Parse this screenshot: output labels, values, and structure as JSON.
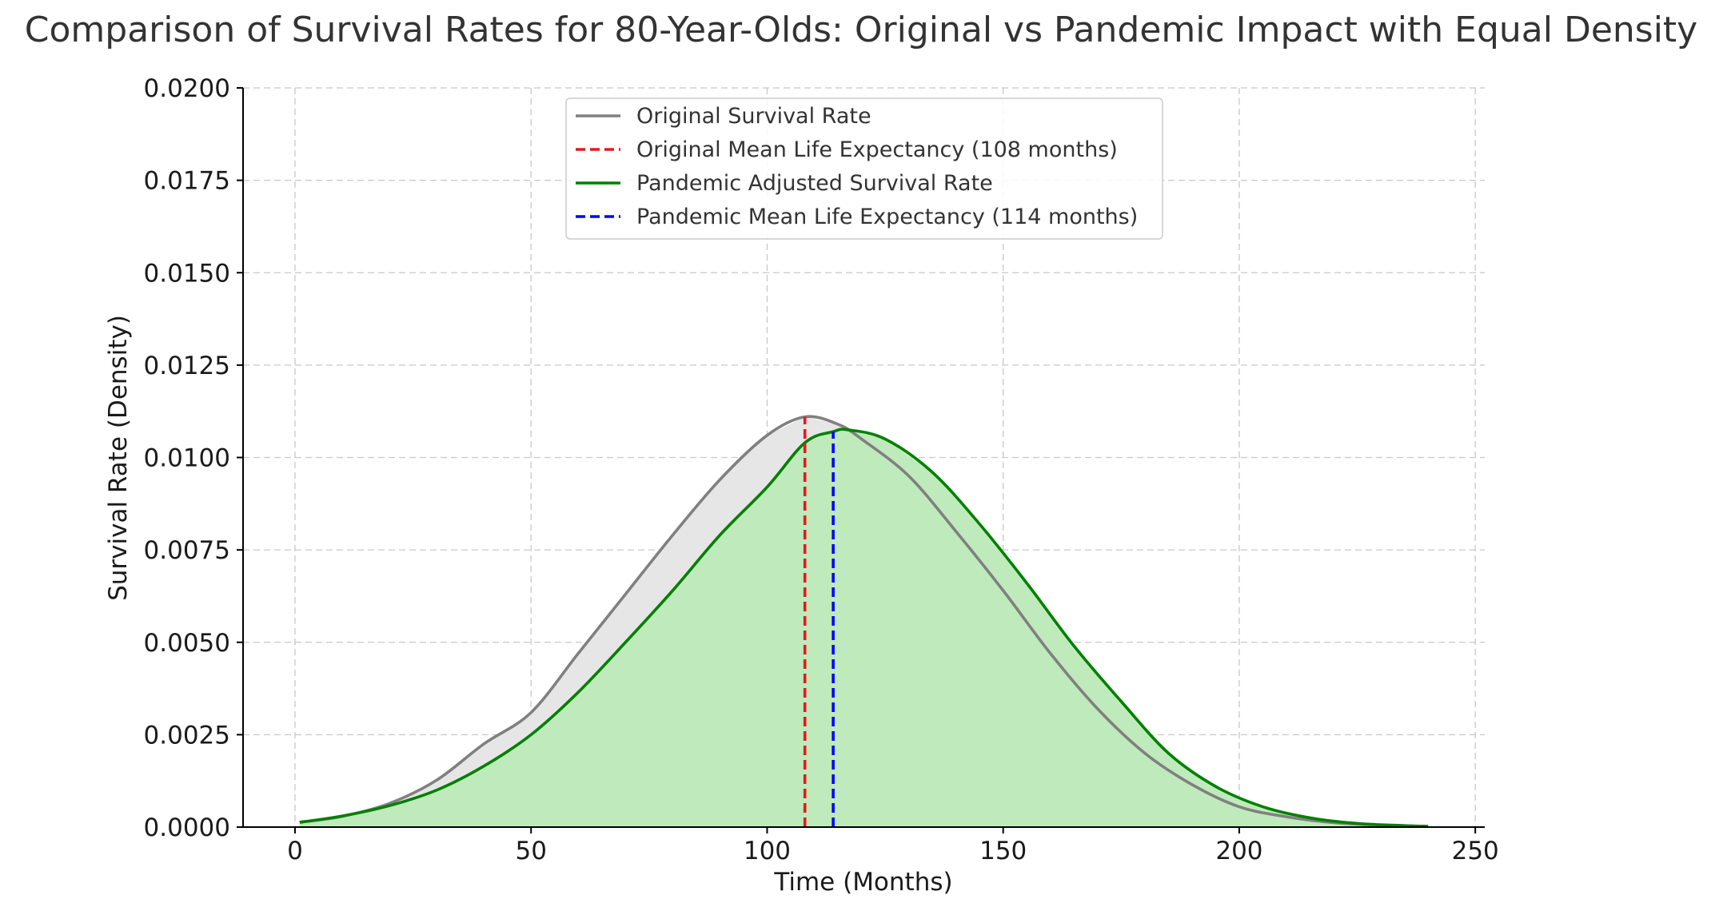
{
  "chart_data": {
    "type": "area",
    "title": "Comparison of Survival Rates for 80-Year-Olds: Original vs Pandemic Impact with Equal Density",
    "xlabel": "Time (Months)",
    "ylabel": "Survival Rate (Density)",
    "xlim": [
      -11,
      252
    ],
    "ylim": [
      0,
      0.02
    ],
    "xticks": [
      0,
      50,
      100,
      150,
      200,
      250
    ],
    "xtick_labels": [
      "0",
      "50",
      "100",
      "150",
      "200",
      "250"
    ],
    "yticks": [
      0,
      0.0025,
      0.005,
      0.0075,
      0.01,
      0.0125,
      0.015,
      0.0175,
      0.02
    ],
    "ytick_labels": [
      "0.0000",
      "0.0025",
      "0.0050",
      "0.0075",
      "0.0100",
      "0.0125",
      "0.0150",
      "0.0175",
      "0.0200"
    ],
    "grid": true,
    "legend_position": "upper-center",
    "series": [
      {
        "name": "Original Survival Rate",
        "kind": "curve",
        "color": "#808080",
        "fill": "#e6e6e6",
        "points": [
          [
            1,
            0.00013
          ],
          [
            10,
            0.00029
          ],
          [
            20,
            0.00064
          ],
          [
            30,
            0.00127
          ],
          [
            40,
            0.00225
          ],
          [
            50,
            0.0031
          ],
          [
            60,
            0.0047
          ],
          [
            70,
            0.0063
          ],
          [
            80,
            0.0079
          ],
          [
            90,
            0.0094
          ],
          [
            100,
            0.0106
          ],
          [
            108,
            0.0111
          ],
          [
            115,
            0.0109
          ],
          [
            120,
            0.0105
          ],
          [
            130,
            0.0095
          ],
          [
            140,
            0.008
          ],
          [
            150,
            0.0064
          ],
          [
            160,
            0.0047
          ],
          [
            170,
            0.0032
          ],
          [
            180,
            0.002
          ],
          [
            190,
            0.00115
          ],
          [
            200,
            0.00055
          ],
          [
            210,
            0.00028
          ],
          [
            220,
            0.00012
          ],
          [
            230,
            5e-05
          ],
          [
            240,
            2e-05
          ]
        ]
      },
      {
        "name": "Original Mean Life Expectancy (108 months)",
        "kind": "vline",
        "color": "#e31a1c",
        "x": 108,
        "ymax": 0.0111
      },
      {
        "name": "Pandemic Adjusted Survival Rate",
        "kind": "curve",
        "color": "#008000",
        "fill": "#bfeabb",
        "points": [
          [
            1,
            0.00013
          ],
          [
            10,
            0.0003
          ],
          [
            20,
            0.00058
          ],
          [
            30,
            0.001
          ],
          [
            40,
            0.00165
          ],
          [
            50,
            0.0025
          ],
          [
            60,
            0.00365
          ],
          [
            70,
            0.005
          ],
          [
            80,
            0.0064
          ],
          [
            90,
            0.0079
          ],
          [
            100,
            0.0092
          ],
          [
            108,
            0.0104
          ],
          [
            114,
            0.0107
          ],
          [
            117,
            0.01075
          ],
          [
            125,
            0.0105
          ],
          [
            135,
            0.0096
          ],
          [
            145,
            0.0082
          ],
          [
            155,
            0.0066
          ],
          [
            165,
            0.0049
          ],
          [
            175,
            0.0034
          ],
          [
            185,
            0.002
          ],
          [
            195,
            0.0011
          ],
          [
            205,
            0.00055
          ],
          [
            215,
            0.00025
          ],
          [
            225,
            0.0001
          ],
          [
            235,
            4e-05
          ],
          [
            240,
            2e-05
          ]
        ]
      },
      {
        "name": "Pandemic Mean Life Expectancy (114 months)",
        "kind": "vline",
        "color": "#0000ff",
        "x": 114,
        "ymax": 0.0107
      }
    ]
  }
}
